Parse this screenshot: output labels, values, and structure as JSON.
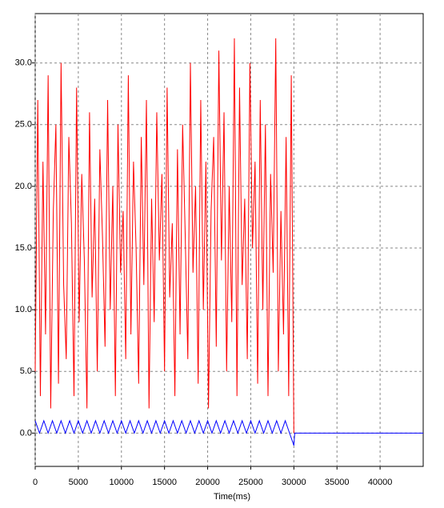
{
  "chart_data": {
    "type": "line",
    "x_label": "Time(ms)",
    "xlim": [
      0,
      45000
    ],
    "ylim": [
      -2.7,
      34
    ],
    "xticks": [
      0,
      5000,
      10000,
      15000,
      20000,
      25000,
      30000,
      35000,
      40000
    ],
    "yticks": [
      {
        "value": 0,
        "label": "0.0"
      },
      {
        "value": 5,
        "label": "5.0"
      },
      {
        "value": 10,
        "label": "10.0"
      },
      {
        "value": 15,
        "label": "15.0"
      },
      {
        "value": 20,
        "label": "20.0"
      },
      {
        "value": 25,
        "label": "25.0"
      },
      {
        "value": 30,
        "label": "30.0"
      }
    ],
    "grid": true,
    "series": [
      {
        "color": "#ff0000",
        "x": [
          0,
          300,
          600,
          900,
          1200,
          1500,
          1800,
          2100,
          2400,
          2700,
          3000,
          3300,
          3600,
          3900,
          4200,
          4500,
          4800,
          5100,
          5400,
          5700,
          6000,
          6300,
          6600,
          6900,
          7200,
          7500,
          7800,
          8100,
          8400,
          8700,
          9000,
          9300,
          9600,
          9900,
          10200,
          10500,
          10800,
          11100,
          11400,
          11700,
          12000,
          12300,
          12600,
          12900,
          13200,
          13500,
          13800,
          14100,
          14400,
          14700,
          15000,
          15300,
          15600,
          15900,
          16200,
          16500,
          16800,
          17100,
          17400,
          17700,
          18000,
          18300,
          18600,
          18900,
          19200,
          19500,
          19800,
          20100,
          20400,
          20700,
          21000,
          21300,
          21600,
          21900,
          22200,
          22500,
          22800,
          23100,
          23400,
          23700,
          24000,
          24300,
          24600,
          24900,
          25200,
          25500,
          25800,
          26100,
          26400,
          26700,
          27000,
          27300,
          27600,
          27900,
          28200,
          28500,
          28800,
          29100,
          29400,
          29700,
          30000
        ],
        "values": [
          5,
          27,
          3,
          22,
          8,
          29,
          2,
          18,
          25,
          4,
          30,
          12,
          6,
          24,
          17,
          3,
          28,
          9,
          21,
          14,
          2,
          26,
          11,
          19,
          5,
          23,
          16,
          7,
          27,
          10,
          20,
          3,
          25,
          13,
          18,
          6,
          29,
          8,
          22,
          15,
          4,
          24,
          12,
          27,
          2,
          19,
          9,
          26,
          14,
          21,
          5,
          28,
          11,
          17,
          3,
          23,
          8,
          25,
          16,
          6,
          30,
          13,
          20,
          4,
          27,
          10,
          22,
          2,
          18,
          24,
          7,
          31,
          14,
          26,
          5,
          20,
          9,
          32,
          3,
          28,
          12,
          19,
          6,
          30,
          15,
          22,
          4,
          27,
          10,
          25,
          3,
          21,
          13,
          32,
          5,
          18,
          8,
          24,
          3,
          29,
          0
        ]
      },
      {
        "color": "#0000ff",
        "x": [
          0,
          500,
          1000,
          1500,
          2000,
          2500,
          3000,
          3500,
          4000,
          4500,
          5000,
          5500,
          6000,
          6500,
          7000,
          7500,
          8000,
          8500,
          9000,
          9500,
          10000,
          10500,
          11000,
          11500,
          12000,
          12500,
          13000,
          13500,
          14000,
          14500,
          15000,
          15500,
          16000,
          16500,
          17000,
          17500,
          18000,
          18500,
          19000,
          19500,
          20000,
          20500,
          21000,
          21500,
          22000,
          22500,
          23000,
          23500,
          24000,
          24500,
          25000,
          25500,
          26000,
          26500,
          27000,
          27500,
          28000,
          28500,
          29000,
          29500,
          30000,
          30100,
          45000
        ],
        "values": [
          1,
          0,
          1,
          0,
          1,
          0,
          1,
          0,
          1,
          0,
          1,
          0,
          1,
          0,
          1,
          0,
          1,
          0,
          1,
          0,
          1,
          0,
          1,
          0,
          1,
          0,
          1,
          0,
          1,
          0,
          1,
          0,
          1,
          0,
          1,
          0,
          1,
          0,
          1,
          0,
          1,
          0,
          1,
          0,
          1,
          0,
          1,
          0,
          1,
          0,
          1,
          0,
          1,
          0,
          1,
          0,
          1,
          0,
          1,
          0,
          -1,
          0,
          0
        ]
      }
    ]
  }
}
